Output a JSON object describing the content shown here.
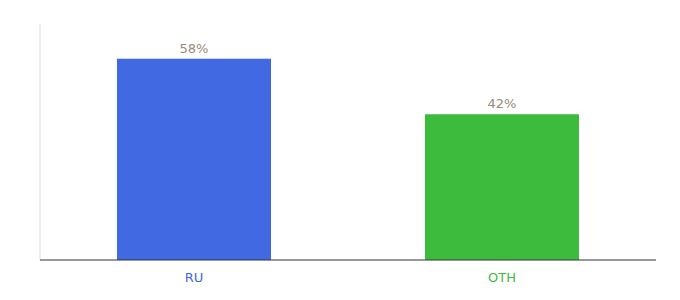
{
  "chart_data": {
    "type": "bar",
    "categories": [
      "RU",
      "OTH"
    ],
    "values": [
      58,
      42
    ],
    "value_labels": [
      "58%",
      "42%"
    ],
    "colors": [
      "#4169e1",
      "#3dbb3d"
    ],
    "ylim": [
      0,
      68
    ],
    "data_labels": true,
    "tick_labels": "x",
    "grid": false
  }
}
